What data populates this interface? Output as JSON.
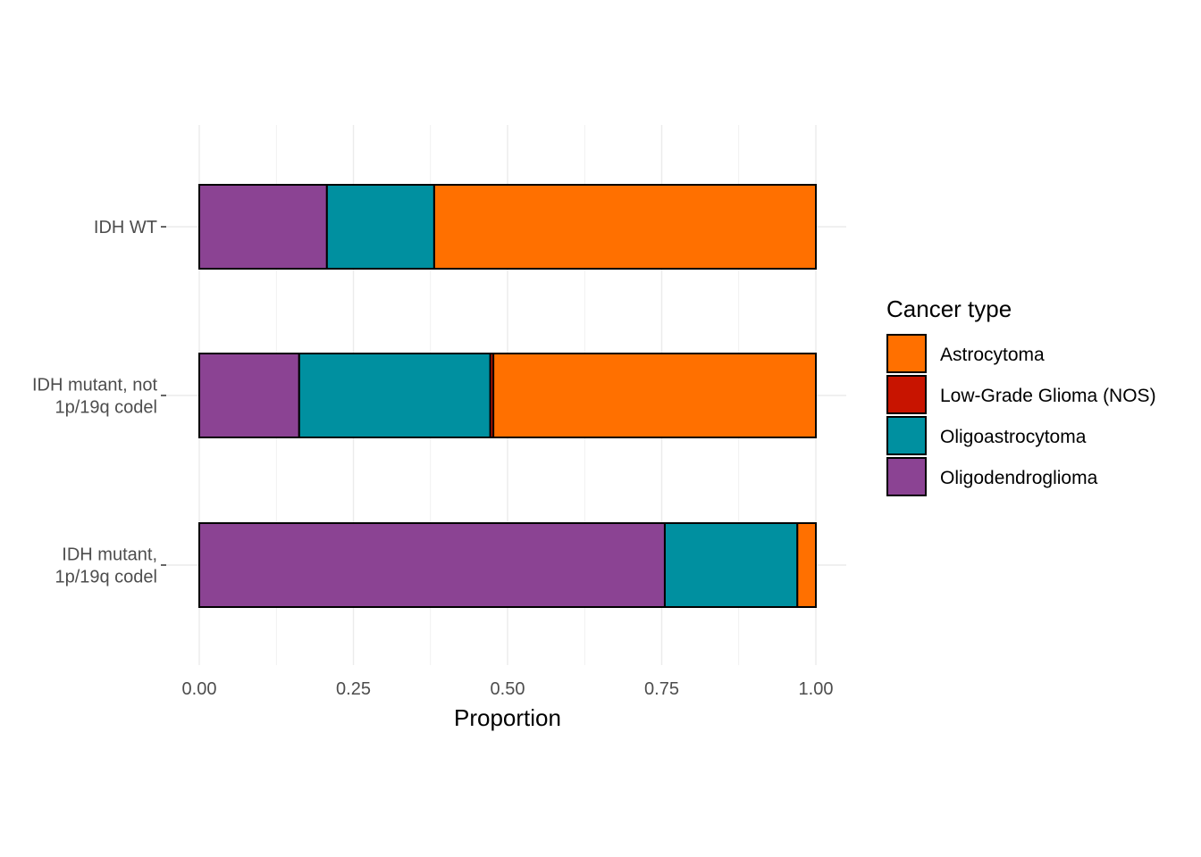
{
  "chart_data": {
    "type": "bar",
    "orientation": "horizontal",
    "stacked": true,
    "title": "",
    "xlabel": "Proportion",
    "ylabel": "",
    "xlim": [
      0,
      1
    ],
    "x_ticks": [
      "0.00",
      "0.25",
      "0.50",
      "0.75",
      "1.00"
    ],
    "grid": true,
    "legend_position": "right",
    "legend_title": "Cancer type",
    "categories": [
      [
        "IDH mutant,",
        "1p/19q codel"
      ],
      [
        "IDH mutant, not",
        "1p/19q codel"
      ],
      [
        "IDH WT"
      ]
    ],
    "series": [
      {
        "name": "Oligodendroglioma",
        "color": "#8B4393",
        "values": [
          0.755,
          0.162,
          0.207
        ]
      },
      {
        "name": "Oligoastrocytoma",
        "color": "#0090A0",
        "values": [
          0.215,
          0.31,
          0.174
        ]
      },
      {
        "name": "Low-Grade Glioma (NOS)",
        "color": "#C81400",
        "values": [
          0.0,
          0.005,
          0.0
        ]
      },
      {
        "name": "Astrocytoma",
        "color": "#FF7000",
        "values": [
          0.03,
          0.523,
          0.619
        ]
      }
    ],
    "legend_order": [
      "Astrocytoma",
      "Low-Grade Glioma (NOS)",
      "Oligoastrocytoma",
      "Oligodendroglioma"
    ]
  }
}
